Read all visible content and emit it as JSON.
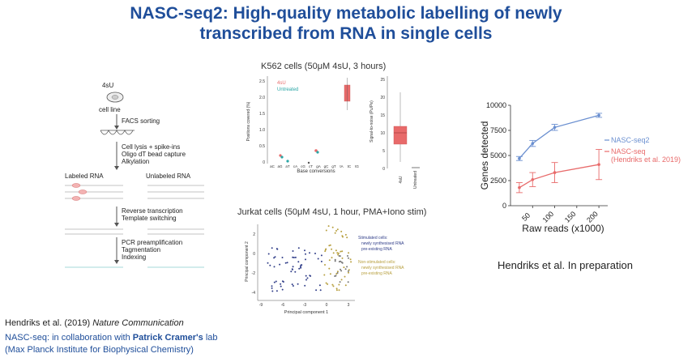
{
  "title_line1": "NASC-seq2: High-quality metabolic labelling of newly",
  "title_line2": "transcribed from RNA in single cells",
  "workflow": {
    "label_4su": "4sU",
    "cell_line": "cell line",
    "step1": "FACS sorting",
    "step2a": "Cell lysis + spike-ins",
    "step2b": "Oligo dT bead capture",
    "step2c": "Alkylation",
    "labeled": "Labeled RNA",
    "unlabeled": "Unlabeled RNA",
    "step3a": "Reverse transcription",
    "step3b": "Template switching",
    "step4a": "PCR preamplification",
    "step4b": "Tagmentation",
    "step4c": "Indexing"
  },
  "k562": {
    "title": "K562 cells (50μM 4sU, 3 hours)",
    "legend_4su": "4sU",
    "legend_untreated": "Untreated",
    "ylabel": "Positions covered (%)",
    "xlabel": "Base conversions",
    "yticks": [
      "2.5",
      "2.0",
      "1.5",
      "1.0",
      "0.5",
      "0"
    ],
    "xticks": [
      "aC",
      "aG",
      "aT",
      "cA",
      "cG",
      "cT",
      "gA",
      "gC",
      "gT",
      "tA",
      "tC",
      "tG"
    ],
    "s2n_ylabel": "Signal-to-noise (Pu/Pe)",
    "s2n_yticks": [
      "25",
      "20",
      "15",
      "10",
      "5",
      "0"
    ],
    "s2n_xticks": [
      "4sU",
      "Untreated"
    ]
  },
  "jurkat": {
    "title": "Jurkat cells (50μM 4sU, 1 hour, PMA+Iono stim)",
    "ylabel": "Principal component 2",
    "xlabel": "Principal component 1",
    "stim_header": "Stimulated cells:",
    "stim_new": "newly synthesised RNA",
    "stim_pre": "pre-existing RNA",
    "nonstim_header": "Non-stimulated cells:",
    "nonstim_new": "newly synthesised RNA",
    "nonstim_pre": "pre-existing RNA",
    "xticks": [
      "-9",
      "-6",
      "-3",
      "0",
      "3"
    ],
    "yticks": [
      "2",
      "0",
      "-2",
      "-4"
    ]
  },
  "chart_data": {
    "type": "line",
    "x": [
      20,
      50,
      100,
      200
    ],
    "xlabel": "Raw reads (x1000)",
    "ylabel": "Genes detected",
    "xlim": [
      0,
      220
    ],
    "ylim": [
      0,
      10000
    ],
    "xticks": [
      "50",
      "100",
      "150",
      "200"
    ],
    "yticks": [
      "10000",
      "7500",
      "5000",
      "2500",
      "0"
    ],
    "grid": false,
    "legend": "right",
    "series": [
      {
        "name": "NASC-seq2",
        "color": "#6a8fd0",
        "values": [
          4700,
          6200,
          7800,
          9000
        ],
        "err": [
          200,
          300,
          300,
          200
        ]
      },
      {
        "name": "NASC-seq\n(Hendriks et al. 2019)",
        "color": "#e86a6a",
        "values": [
          1800,
          2600,
          3300,
          4100
        ],
        "err": [
          500,
          700,
          1000,
          1500
        ]
      }
    ],
    "legend_name1": "NASC-seq2",
    "legend_name2a": "NASC-seq",
    "legend_name2b": "(Hendriks et al. 2019)"
  },
  "chart_caption": "Hendriks et al. In preparation",
  "ref_authors": "Hendriks et al. (2019) ",
  "ref_journal": "Nature Communication",
  "collab_pre": "NASC-seq: in collaboration with ",
  "collab_name": "Patrick Cramer's",
  "collab_post": " lab",
  "collab_inst": "(Max Planck Institute for Biophysical Chemistry)",
  "colors": {
    "title": "#1f4e9a",
    "red": "#e86a6a",
    "blue": "#6a8fd0",
    "teal": "#2aa6a6",
    "olive": "#b8a040",
    "navy": "#33408a"
  }
}
